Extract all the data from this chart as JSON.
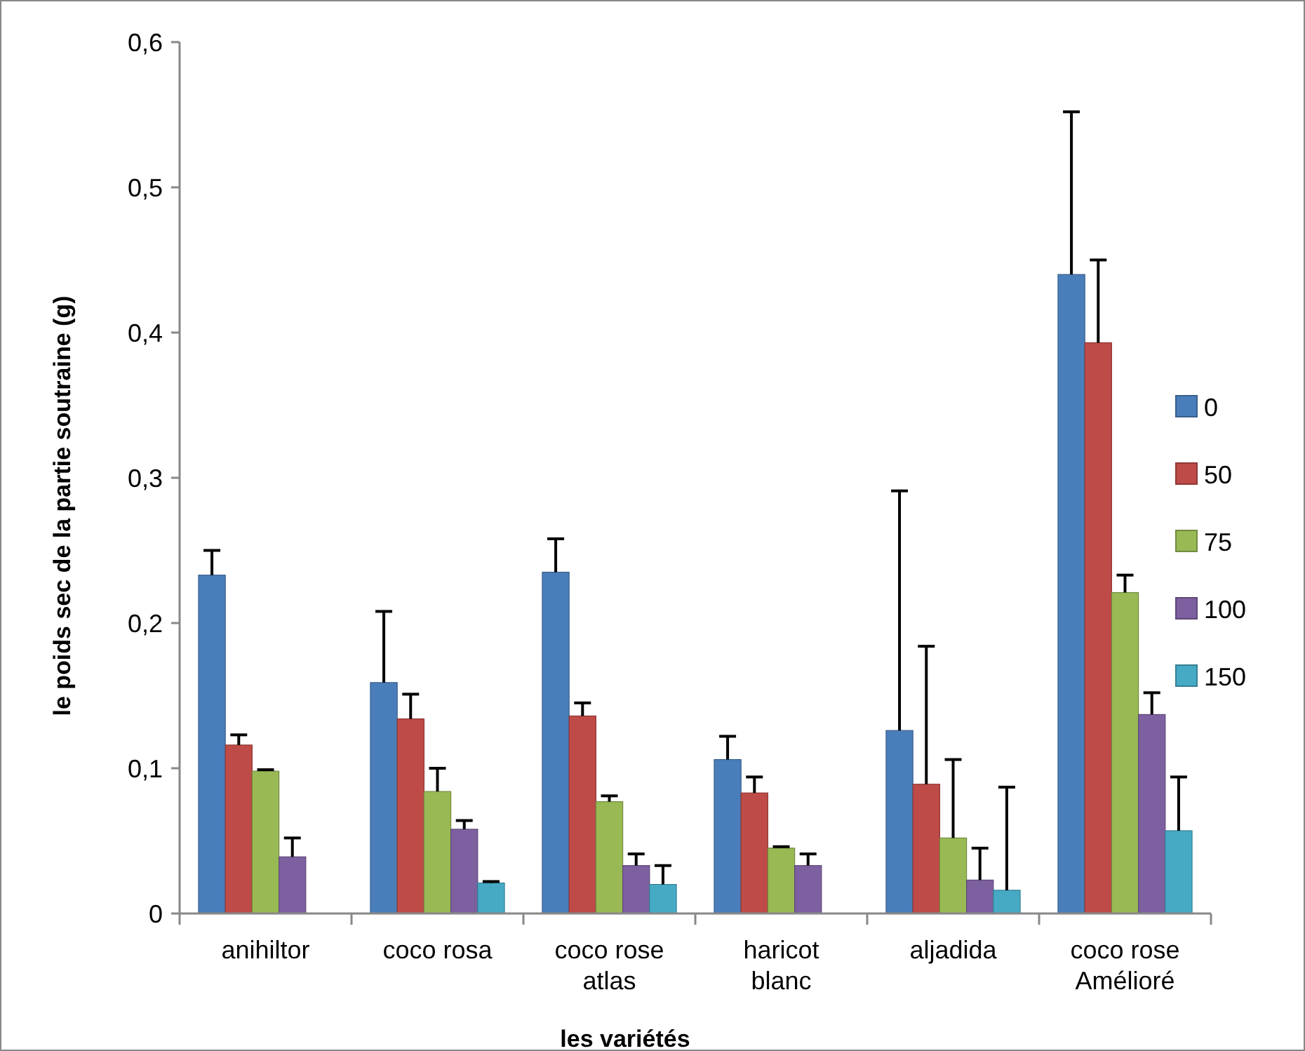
{
  "chart_data": {
    "type": "bar",
    "xlabel": "les variétés",
    "ylabel": "le poids sec de la partie soutraine (g)",
    "categories": [
      "anihiltor",
      "coco rosa",
      "coco rose atlas",
      "haricot blanc",
      "aljadida",
      "coco rose Amélioré"
    ],
    "series": [
      {
        "name": "0",
        "color": "#4a7ebb",
        "values": [
          0.233,
          0.159,
          0.235,
          0.106,
          0.126,
          0.44
        ],
        "errors": [
          [
            0.233,
            0.25
          ],
          [
            0.159,
            0.208
          ],
          [
            0.235,
            0.258
          ],
          [
            0.106,
            0.122
          ],
          [
            0.126,
            0.291
          ],
          [
            0.44,
            0.552
          ]
        ]
      },
      {
        "name": "50",
        "color": "#be4b48",
        "values": [
          0.116,
          0.134,
          0.136,
          0.083,
          0.089,
          0.393
        ],
        "errors": [
          [
            0.116,
            0.123
          ],
          [
            0.134,
            0.151
          ],
          [
            0.136,
            0.145
          ],
          [
            0.083,
            0.094
          ],
          [
            0.089,
            0.184
          ],
          [
            0.393,
            0.45
          ]
        ]
      },
      {
        "name": "75",
        "color": "#98b954",
        "values": [
          0.098,
          0.084,
          0.077,
          0.045,
          0.052,
          0.221
        ],
        "errors": [
          [
            0.098,
            0.099
          ],
          [
            0.084,
            0.1
          ],
          [
            0.077,
            0.081
          ],
          [
            0.045,
            0.046
          ],
          [
            0.052,
            0.106
          ],
          [
            0.221,
            0.233
          ]
        ]
      },
      {
        "name": "100",
        "color": "#7d60a0",
        "values": [
          0.039,
          0.058,
          0.033,
          0.033,
          0.023,
          0.137
        ],
        "errors": [
          [
            0.039,
            0.052
          ],
          [
            0.058,
            0.064
          ],
          [
            0.033,
            0.041
          ],
          [
            0.033,
            0.041
          ],
          [
            0.023,
            0.045
          ],
          [
            0.137,
            0.152
          ]
        ]
      },
      {
        "name": "150",
        "color": "#46aac5",
        "values": [
          0,
          0.021,
          0.02,
          0,
          0.016,
          0.057
        ],
        "errors": [
          null,
          [
            0.021,
            0.022
          ],
          [
            0.02,
            0.033
          ],
          null,
          [
            0.016,
            0.087
          ],
          [
            0.057,
            0.094
          ]
        ]
      }
    ],
    "ylim": [
      0,
      0.6
    ],
    "yticks": [
      {
        "value": 0,
        "label": "0"
      },
      {
        "value": 0.1,
        "label": "0,1"
      },
      {
        "value": 0.2,
        "label": "0,2"
      },
      {
        "value": 0.3,
        "label": "0,3"
      },
      {
        "value": 0.4,
        "label": "0,4"
      },
      {
        "value": 0.5,
        "label": "0,5"
      },
      {
        "value": 0.6,
        "label": "0,6"
      }
    ],
    "legend": "right"
  }
}
